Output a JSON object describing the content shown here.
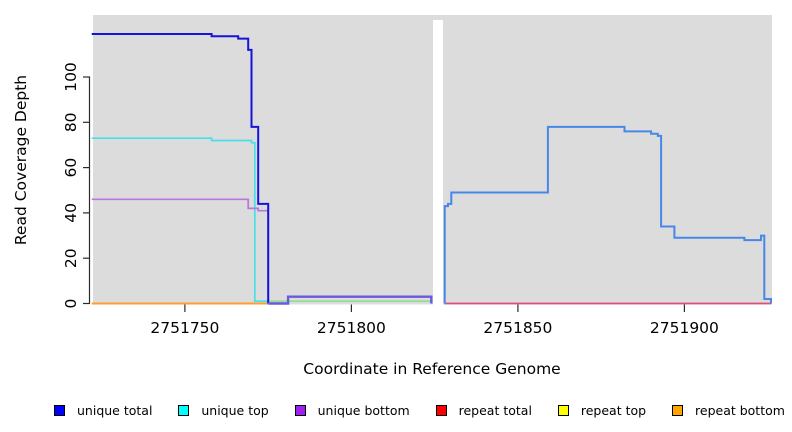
{
  "figure": {
    "y_axis_label": "Read Coverage Depth",
    "x_axis_label": "Coordinate in Reference Genome"
  },
  "legend": {
    "items": [
      {
        "label": "unique total",
        "color": "#0000FF"
      },
      {
        "label": "unique top",
        "color": "#00FFFF"
      },
      {
        "label": "unique bottom",
        "color": "#A020F0"
      },
      {
        "label": "repeat total",
        "color": "#FF0000"
      },
      {
        "label": "repeat top",
        "color": "#FFFF00"
      },
      {
        "label": "repeat bottom",
        "color": "#FFA500"
      }
    ]
  },
  "chart_data": {
    "type": "line",
    "subtype": "step-coverage",
    "title": "",
    "xlabel": "Coordinate in Reference Genome",
    "ylabel": "Read Coverage Depth",
    "background": "#DCDCDC",
    "grid": false,
    "legend_position": "bottom",
    "xlim": [
      2751722.4,
      2751926.3
    ],
    "ylim": [
      0,
      127.4
    ],
    "x_ticks": [
      2751750,
      2751800,
      2751850,
      2751900
    ],
    "y_ticks": [
      0,
      20,
      40,
      60,
      80,
      100
    ],
    "gap_region": {
      "x0": 2751824.5,
      "x1": 2751827.5
    },
    "series": [
      {
        "name": "repeat bottom (left baseline)",
        "color": "#FF9D2E",
        "width": 2,
        "points": [
          [
            2751722,
            0
          ],
          [
            2751775,
            0
          ]
        ]
      },
      {
        "name": "repeat total (right baseline)",
        "color": "#DE4F78",
        "width": 1.7,
        "points": [
          [
            2751828,
            0
          ],
          [
            2751926,
            0
          ]
        ]
      },
      {
        "name": "top-strand overlap low segment",
        "color": "#8FDC95",
        "width": 1.7,
        "points": [
          [
            2751775,
            1
          ],
          [
            2751824,
            1
          ]
        ]
      },
      {
        "name": "unique top",
        "color": "#45E0E8",
        "width": 1.7,
        "points": [
          [
            2751722,
            73
          ],
          [
            2751758,
            72
          ],
          [
            2751770,
            71
          ],
          [
            2751771,
            1
          ],
          [
            2751775,
            0
          ]
        ]
      },
      {
        "name": "unique bottom",
        "color": "#B876DE",
        "width": 1.7,
        "points": [
          [
            2751722,
            46
          ],
          [
            2751769,
            42
          ],
          [
            2751772,
            41
          ],
          [
            2751775,
            0
          ]
        ]
      },
      {
        "name": "unique total (left block)",
        "color": "#1414DC",
        "width": 2,
        "points": [
          [
            2751722,
            119
          ],
          [
            2751758,
            118
          ],
          [
            2751766,
            117
          ],
          [
            2751769,
            112
          ],
          [
            2751770,
            78
          ],
          [
            2751772,
            44
          ],
          [
            2751775,
            0
          ]
        ]
      },
      {
        "name": "unique total+bottom low segment",
        "color": "#6A5ADE",
        "width": 2.4,
        "points": [
          [
            2751775,
            0
          ],
          [
            2751781,
            3
          ],
          [
            2751824,
            3
          ],
          [
            2751824,
            0
          ]
        ]
      },
      {
        "name": "unique total (right block)",
        "color": "#4687E8",
        "width": 2,
        "points": [
          [
            2751828,
            0
          ],
          [
            2751828,
            43
          ],
          [
            2751829,
            44
          ],
          [
            2751830,
            49
          ],
          [
            2751859,
            78
          ],
          [
            2751882,
            76
          ],
          [
            2751890,
            75
          ],
          [
            2751892,
            74
          ],
          [
            2751893,
            34
          ],
          [
            2751897,
            29
          ],
          [
            2751918,
            28
          ],
          [
            2751923,
            30
          ],
          [
            2751924,
            2
          ],
          [
            2751926,
            0
          ]
        ]
      }
    ]
  }
}
